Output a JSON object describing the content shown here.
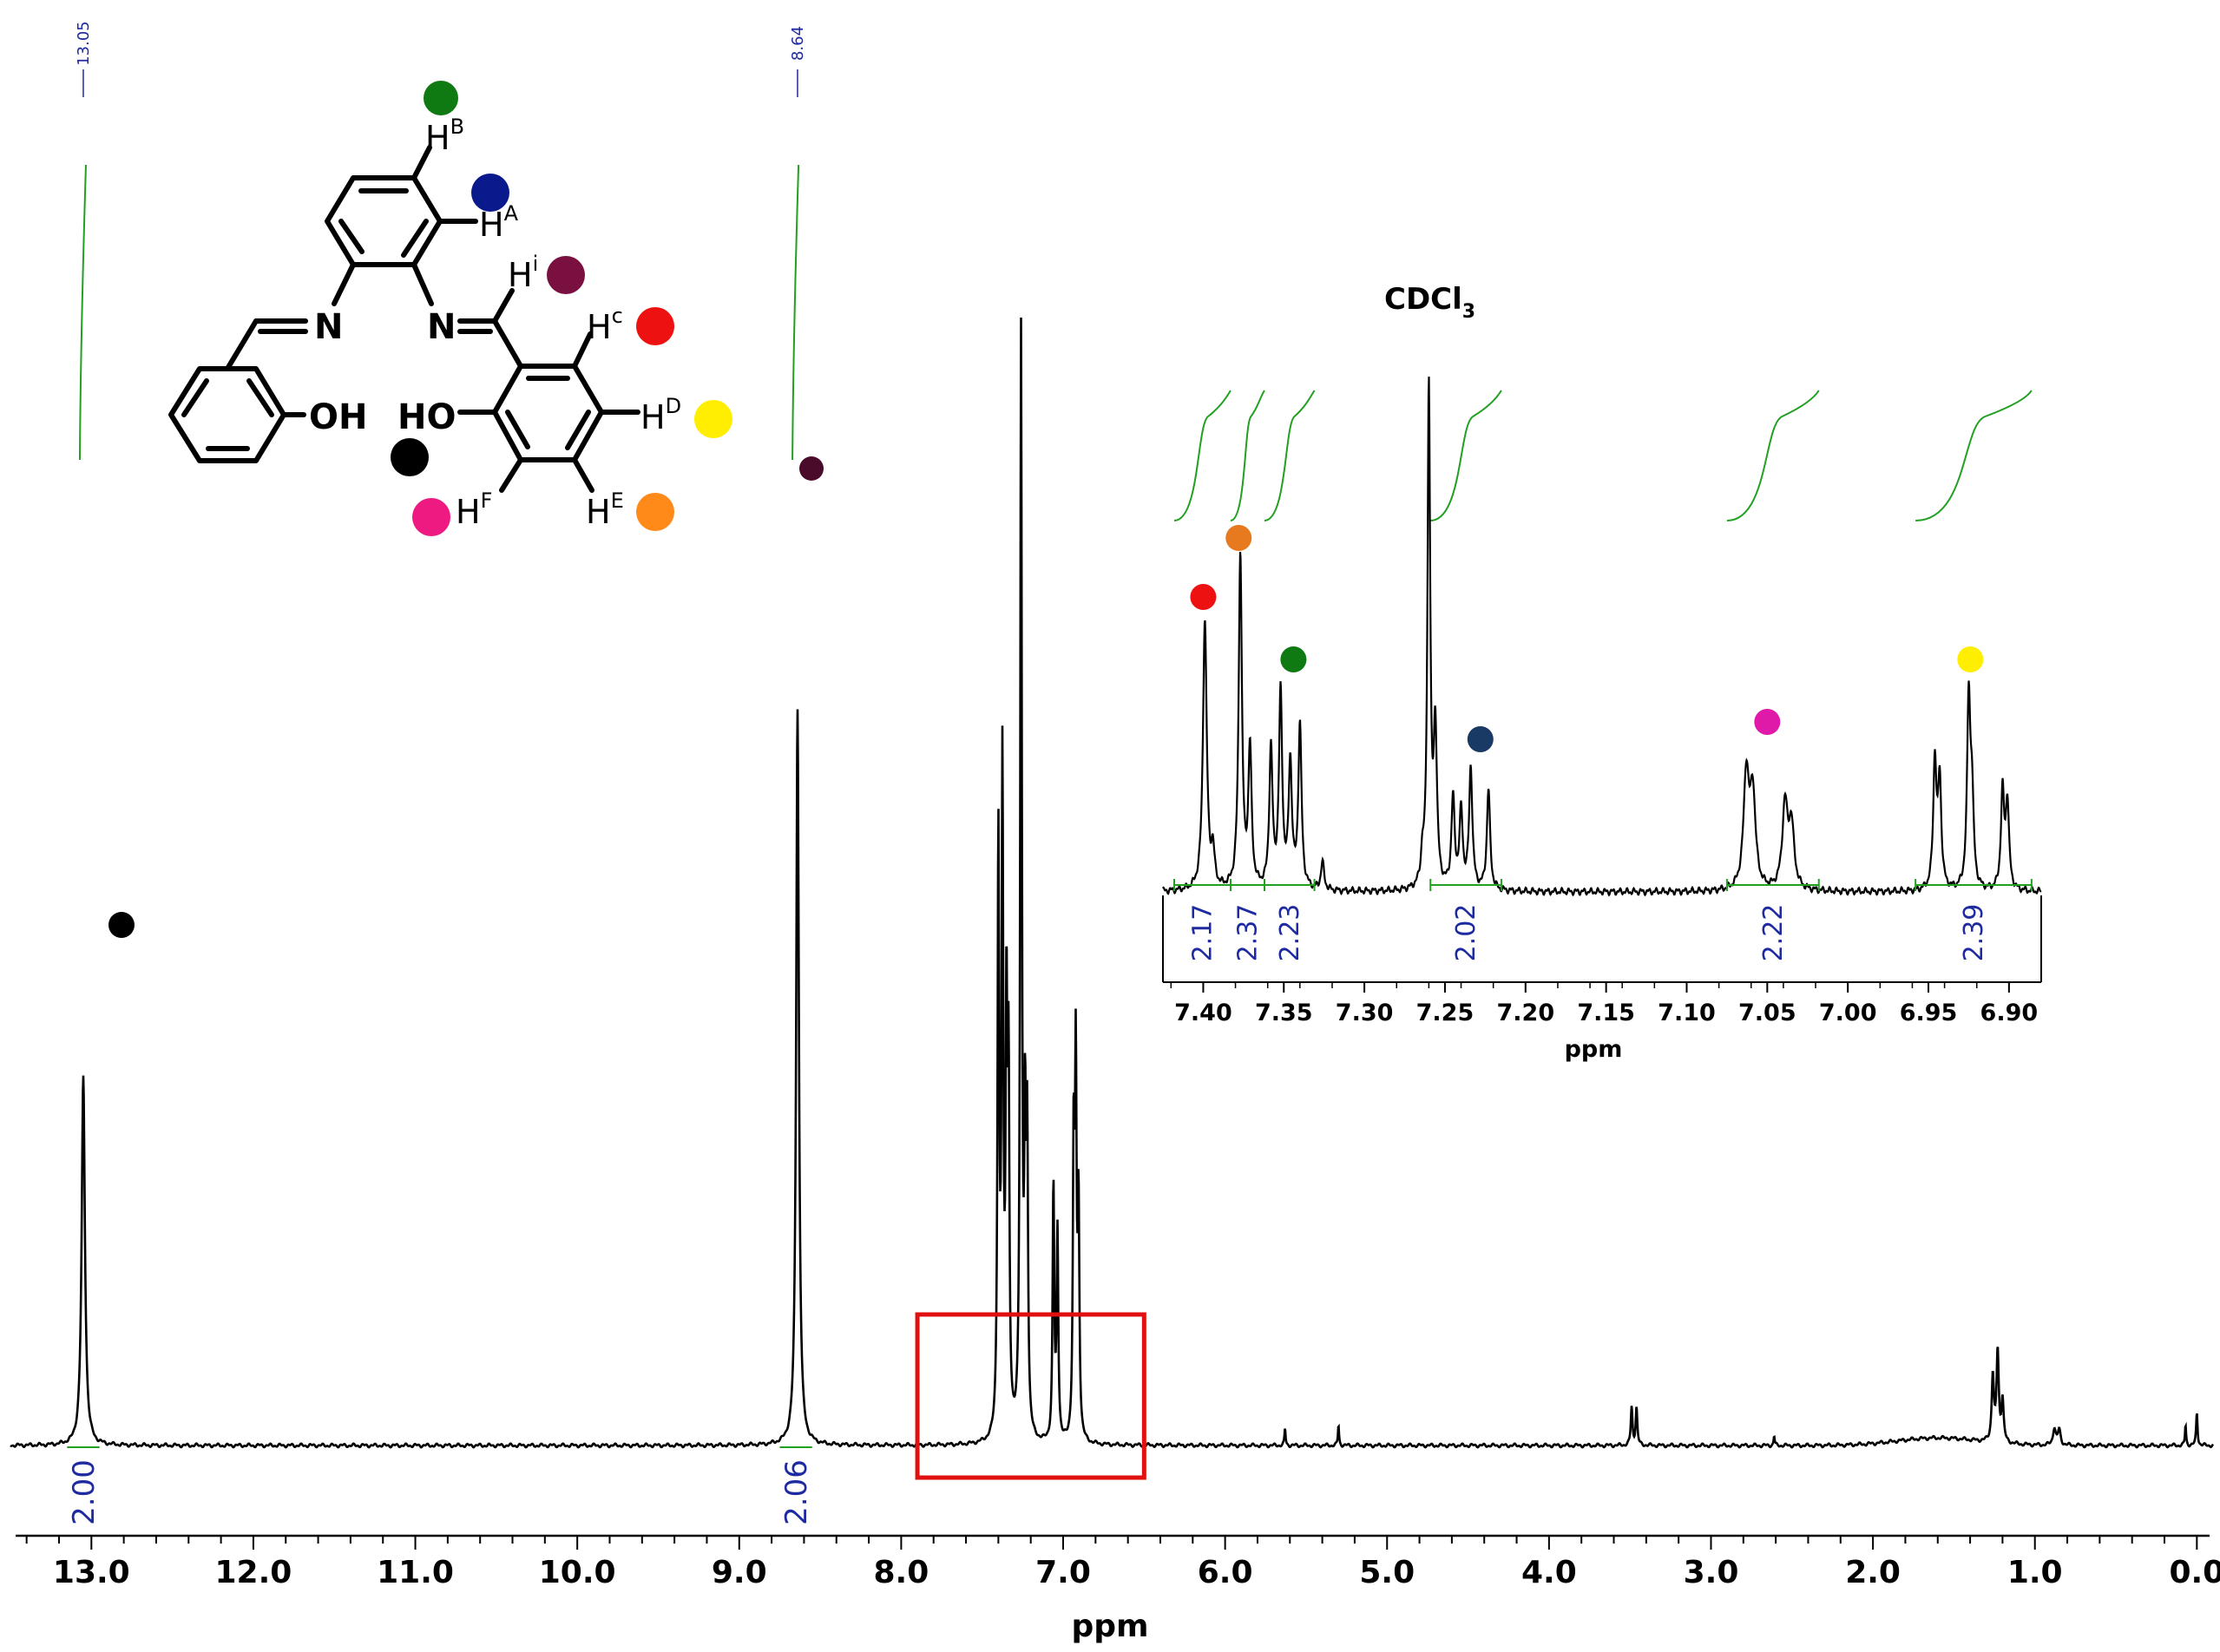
{
  "colors": {
    "spectrum": "#000000",
    "integral": "#22a022",
    "integral_value": "#1e2aa0",
    "highlight_box": "#e01010",
    "proton_A": "#0a1a8c",
    "proton_B": "#0f7a12",
    "proton_C": "#ee1111",
    "proton_D": "#ffee00",
    "proton_E": "#ff8a1a",
    "proton_F": "#ee1a82",
    "proton_I": "#7a1040",
    "proton_OH": "#000000",
    "inset_red": "#ee1111",
    "inset_orange": "#e77a1f",
    "inset_green": "#0f7a12",
    "inset_navy": "#1a3a66",
    "inset_magenta": "#e01aa8",
    "inset_yellow": "#ffee00"
  },
  "structure": {
    "atom_N_left": "N",
    "atom_N_right": "N",
    "group_OH_left": "OH",
    "group_HO_right": "HO",
    "h_B": "H",
    "h_B_sup": "B",
    "h_A": "H",
    "h_A_sup": "A",
    "h_i": "H",
    "h_i_sup": "i",
    "h_C": "H",
    "h_C_sup": "c",
    "h_D": "H",
    "h_D_sup": "D",
    "h_E": "H",
    "h_E_sup": "E",
    "h_F": "H",
    "h_F_sup": "F"
  },
  "chart_data": [
    {
      "type": "line",
      "name": "main-spectrum",
      "xlabel": "ppm",
      "ylabel": "",
      "xlim": [
        13.5,
        -0.1
      ],
      "x_reversed": true,
      "xticks": [
        13.0,
        12.0,
        11.0,
        10.0,
        9.0,
        8.0,
        7.0,
        6.0,
        5.0,
        4.0,
        3.0,
        2.0,
        1.0,
        0.0
      ],
      "xtick_labels": [
        "13.0",
        "12.0",
        "11.0",
        "10.0",
        "9.0",
        "8.0",
        "7.0",
        "6.0",
        "5.0",
        "4.0",
        "3.0",
        "2.0",
        "1.0",
        "0.0"
      ],
      "grid": false,
      "peak_labels": [
        {
          "ppm": 13.05,
          "text": "13.05"
        },
        {
          "ppm": 8.64,
          "text": "8.64"
        }
      ],
      "peaks": [
        {
          "ppm": 13.05,
          "height": 0.39,
          "width": 0.012
        },
        {
          "ppm": 8.64,
          "height": 0.78,
          "width": 0.01
        },
        {
          "ppm": 7.4,
          "height": 0.63,
          "width": 0.006
        },
        {
          "ppm": 7.375,
          "height": 0.69,
          "width": 0.006
        },
        {
          "ppm": 7.35,
          "height": 0.43,
          "width": 0.006
        },
        {
          "ppm": 7.337,
          "height": 0.36,
          "width": 0.006
        },
        {
          "ppm": 7.26,
          "height": 1.16,
          "width": 0.006
        },
        {
          "ppm": 7.235,
          "height": 0.3,
          "width": 0.006
        },
        {
          "ppm": 7.222,
          "height": 0.3,
          "width": 0.006
        },
        {
          "ppm": 7.06,
          "height": 0.27,
          "width": 0.006
        },
        {
          "ppm": 7.035,
          "height": 0.22,
          "width": 0.006
        },
        {
          "ppm": 6.935,
          "height": 0.3,
          "width": 0.006
        },
        {
          "ppm": 6.922,
          "height": 0.38,
          "width": 0.006
        },
        {
          "ppm": 6.905,
          "height": 0.24,
          "width": 0.006
        },
        {
          "ppm": 5.63,
          "height": 0.018,
          "width": 0.004
        },
        {
          "ppm": 5.3,
          "height": 0.022,
          "width": 0.004
        },
        {
          "ppm": 3.49,
          "height": 0.04,
          "width": 0.006
        },
        {
          "ppm": 3.46,
          "height": 0.04,
          "width": 0.006
        },
        {
          "ppm": 2.61,
          "height": 0.01,
          "width": 0.004
        },
        {
          "ppm": 1.26,
          "height": 0.07,
          "width": 0.008
        },
        {
          "ppm": 1.23,
          "height": 0.096,
          "width": 0.008
        },
        {
          "ppm": 1.2,
          "height": 0.045,
          "width": 0.008
        },
        {
          "ppm": 0.88,
          "height": 0.018,
          "width": 0.01
        },
        {
          "ppm": 0.85,
          "height": 0.016,
          "width": 0.01
        },
        {
          "ppm": 0.07,
          "height": 0.022,
          "width": 0.004
        },
        {
          "ppm": 0.0,
          "height": 0.035,
          "width": 0.005
        }
      ],
      "broad_hump": {
        "center": 1.6,
        "height": 0.008,
        "width": 0.35
      },
      "integrals": [
        {
          "from": 13.15,
          "to": 12.95,
          "value": "2.00"
        },
        {
          "from": 8.75,
          "to": 8.55,
          "value": "2.06"
        }
      ],
      "highlight_range": [
        7.9,
        6.5
      ]
    },
    {
      "type": "line",
      "name": "inset-spectrum",
      "xlabel": "ppm",
      "ylabel": "",
      "xlim": [
        7.425,
        6.88
      ],
      "x_reversed": true,
      "xticks": [
        7.4,
        7.35,
        7.3,
        7.25,
        7.2,
        7.15,
        7.1,
        7.05,
        7.0,
        6.95,
        6.9
      ],
      "xtick_labels": [
        "7.40",
        "7.35",
        "7.30",
        "7.25",
        "7.20",
        "7.15",
        "7.10",
        "7.05",
        "7.00",
        "6.95",
        "6.90"
      ],
      "grid": false,
      "peaks": [
        {
          "ppm": 7.399,
          "height": 0.78,
          "width": 0.0014
        },
        {
          "ppm": 7.394,
          "height": 0.1,
          "width": 0.0012
        },
        {
          "ppm": 7.377,
          "height": 0.97,
          "width": 0.0012
        },
        {
          "ppm": 7.371,
          "height": 0.4,
          "width": 0.0012
        },
        {
          "ppm": 7.358,
          "height": 0.4,
          "width": 0.0012
        },
        {
          "ppm": 7.352,
          "height": 0.56,
          "width": 0.0012
        },
        {
          "ppm": 7.346,
          "height": 0.36,
          "width": 0.0012
        },
        {
          "ppm": 7.34,
          "height": 0.47,
          "width": 0.0012
        },
        {
          "ppm": 7.326,
          "height": 0.08,
          "width": 0.0012
        },
        {
          "ppm": 7.264,
          "height": 0.08,
          "width": 0.001
        },
        {
          "ppm": 7.26,
          "height": 1.45,
          "width": 0.001
        },
        {
          "ppm": 7.256,
          "height": 0.45,
          "width": 0.0012
        },
        {
          "ppm": 7.245,
          "height": 0.26,
          "width": 0.0012
        },
        {
          "ppm": 7.24,
          "height": 0.22,
          "width": 0.0012
        },
        {
          "ppm": 7.234,
          "height": 0.35,
          "width": 0.0012
        },
        {
          "ppm": 7.223,
          "height": 0.29,
          "width": 0.0012
        },
        {
          "ppm": 7.063,
          "height": 0.33,
          "width": 0.002
        },
        {
          "ppm": 7.059,
          "height": 0.27,
          "width": 0.002
        },
        {
          "ppm": 7.039,
          "height": 0.24,
          "width": 0.002
        },
        {
          "ppm": 7.035,
          "height": 0.18,
          "width": 0.002
        },
        {
          "ppm": 6.946,
          "height": 0.37,
          "width": 0.0012
        },
        {
          "ppm": 6.943,
          "height": 0.31,
          "width": 0.0012
        },
        {
          "ppm": 6.925,
          "height": 0.54,
          "width": 0.0012
        },
        {
          "ppm": 6.923,
          "height": 0.25,
          "width": 0.0012
        },
        {
          "ppm": 6.904,
          "height": 0.28,
          "width": 0.0012
        },
        {
          "ppm": 6.901,
          "height": 0.25,
          "width": 0.0012
        }
      ],
      "integrals": [
        {
          "from": 7.418,
          "to": 7.383,
          "value": "2.17"
        },
        {
          "from": 7.383,
          "to": 7.362,
          "value": "2.37"
        },
        {
          "from": 7.362,
          "to": 7.331,
          "value": "2.23"
        },
        {
          "from": 7.259,
          "to": 7.215,
          "value": "2.02"
        },
        {
          "from": 7.075,
          "to": 7.018,
          "value": "2.22"
        },
        {
          "from": 6.958,
          "to": 6.886,
          "value": "2.39"
        }
      ],
      "solvent_label": "CDCl",
      "solvent_sub": "3",
      "markers": [
        {
          "ppm": 7.4,
          "y": 0.85,
          "color": "#ee1111"
        },
        {
          "ppm": 7.378,
          "y": 1.02,
          "color": "#e77a1f"
        },
        {
          "ppm": 7.344,
          "y": 0.67,
          "color": "#0f7a12"
        },
        {
          "ppm": 7.228,
          "y": 0.44,
          "color": "#1a3a66"
        },
        {
          "ppm": 7.05,
          "y": 0.49,
          "color": "#e01aa8"
        },
        {
          "ppm": 6.924,
          "y": 0.67,
          "color": "#ffee00"
        }
      ]
    }
  ]
}
